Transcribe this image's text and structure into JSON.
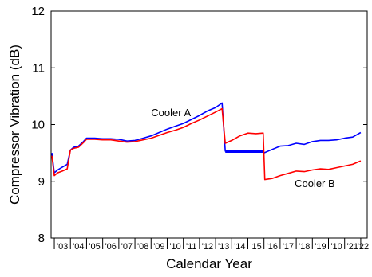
{
  "chart_data": {
    "type": "line",
    "title": "",
    "xlabel": "Calendar Year",
    "ylabel": "Compressor Vibration (dB)",
    "ylim": [
      8,
      12
    ],
    "xlim": [
      2002.8,
      2022.4
    ],
    "yticks": [
      "8",
      "9",
      "10",
      "11",
      "12"
    ],
    "xticks": [
      {
        "year": 2003.5,
        "label": "'03"
      },
      {
        "year": 2004.5,
        "label": "'04"
      },
      {
        "year": 2005.5,
        "label": "'05"
      },
      {
        "year": 2006.5,
        "label": "'06"
      },
      {
        "year": 2007.5,
        "label": "'07"
      },
      {
        "year": 2008.5,
        "label": "'08"
      },
      {
        "year": 2009.5,
        "label": "'09"
      },
      {
        "year": 2010.5,
        "label": "'10"
      },
      {
        "year": 2011.5,
        "label": "'11"
      },
      {
        "year": 2012.5,
        "label": "'12"
      },
      {
        "year": 2013.5,
        "label": "'13"
      },
      {
        "year": 2014.5,
        "label": "'14"
      },
      {
        "year": 2015.5,
        "label": "'15"
      },
      {
        "year": 2016.5,
        "label": "'16"
      },
      {
        "year": 2017.5,
        "label": "'17"
      },
      {
        "year": 2018.5,
        "label": "'18"
      },
      {
        "year": 2019.5,
        "label": "'19"
      },
      {
        "year": 2010.5,
        "label": "'10",
        "note": "printed as shown"
      },
      {
        "year": 2021.5,
        "label": "'21"
      },
      {
        "year": 2022.2,
        "label": "'22"
      }
    ],
    "grid": false,
    "legend": "none",
    "series": [
      {
        "name": "Cooler A",
        "color": "#0000ff",
        "x": [
          2002.85,
          2003.0,
          2003.2,
          2003.5,
          2003.8,
          2004.0,
          2004.2,
          2004.5,
          2004.8,
          2005.0,
          2005.5,
          2006.0,
          2006.5,
          2007.0,
          2007.5,
          2008.0,
          2008.5,
          2009.0,
          2009.5,
          2010.0,
          2010.5,
          2011.0,
          2011.5,
          2012.0,
          2012.5,
          2013.0,
          2013.4,
          2013.6,
          2014.0,
          2014.5,
          2015.0,
          2015.5,
          2015.95,
          2016.0,
          2016.5,
          2017.0,
          2017.5,
          2018.0,
          2018.5,
          2019.0,
          2019.5,
          2020.0,
          2020.5,
          2021.0,
          2021.5,
          2022.0
        ],
        "y": [
          9.5,
          9.15,
          9.2,
          9.25,
          9.3,
          9.55,
          9.6,
          9.62,
          9.7,
          9.76,
          9.76,
          9.75,
          9.75,
          9.74,
          9.71,
          9.72,
          9.76,
          9.8,
          9.86,
          9.92,
          9.97,
          10.02,
          10.09,
          10.16,
          10.24,
          10.3,
          10.38,
          9.53,
          9.53,
          9.53,
          9.53,
          9.53,
          9.53,
          9.5,
          9.56,
          9.62,
          9.63,
          9.67,
          9.65,
          9.7,
          9.72,
          9.72,
          9.73,
          9.76,
          9.78,
          9.86
        ]
      },
      {
        "name": "Cooler B",
        "color": "#ff0000",
        "x": [
          2002.85,
          2003.0,
          2003.2,
          2003.5,
          2003.8,
          2004.0,
          2004.2,
          2004.5,
          2004.8,
          2005.0,
          2005.5,
          2006.0,
          2006.5,
          2007.0,
          2007.5,
          2008.0,
          2008.5,
          2009.0,
          2009.5,
          2010.0,
          2010.5,
          2011.0,
          2011.5,
          2012.0,
          2012.5,
          2013.0,
          2013.4,
          2013.6,
          2014.0,
          2014.5,
          2015.0,
          2015.5,
          2015.95,
          2016.05,
          2016.5,
          2017.0,
          2017.5,
          2018.0,
          2018.5,
          2019.0,
          2019.5,
          2020.0,
          2020.5,
          2021.0,
          2021.5,
          2022.0
        ],
        "y": [
          9.45,
          9.1,
          9.15,
          9.18,
          9.22,
          9.55,
          9.58,
          9.6,
          9.68,
          9.74,
          9.74,
          9.73,
          9.73,
          9.71,
          9.69,
          9.7,
          9.73,
          9.76,
          9.81,
          9.86,
          9.9,
          9.95,
          10.02,
          10.08,
          10.15,
          10.22,
          10.28,
          9.67,
          9.72,
          9.8,
          9.85,
          9.84,
          9.85,
          9.03,
          9.05,
          9.1,
          9.14,
          9.18,
          9.17,
          9.2,
          9.22,
          9.21,
          9.24,
          9.27,
          9.3,
          9.36
        ]
      }
    ],
    "annotations": [
      {
        "text": "Cooler A",
        "x": 2009.0,
        "y": 10.15
      },
      {
        "text": "Cooler B",
        "x": 2017.9,
        "y": 8.9
      }
    ]
  }
}
